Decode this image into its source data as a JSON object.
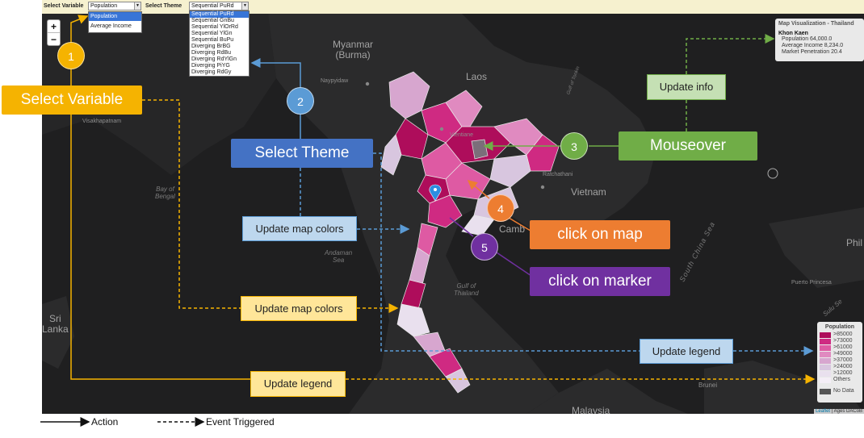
{
  "controls": {
    "variable_label": "Select Variable",
    "variable_value": "Population",
    "variable_options": [
      "Population",
      "Average Income"
    ],
    "theme_label": "Select Theme",
    "theme_value": "Sequential PuRd",
    "theme_options": [
      "Sequential PuRd",
      "Sequential GnBu",
      "Sequential YlOrRd",
      "Sequential YlGn",
      "Sequential BuPu",
      "Diverging BrBG",
      "Diverging RdBu",
      "Diverging RdYlGn",
      "Diverging PiYG",
      "Diverging RdGy"
    ]
  },
  "map": {
    "zoom_in": "+",
    "zoom_out": "−",
    "labels": {
      "myanmar": "Myanmar\n(Burma)",
      "laos": "Laos",
      "vietnam": "Vietnam",
      "bay_of_bengal": "Bay of\nBengal",
      "andaman_sea": "Andaman\nSea",
      "gulf_of_thailand": "Gulf of\nThailand",
      "south_china_sea": "South China Sea",
      "malaysia": "Malaysia",
      "sri_lanka": "Sri\nLanka",
      "cambodia": "Camb",
      "philippines": "Phil",
      "sulu_sea": "Sulu Se",
      "brunei": "Brunei",
      "vientiane": "Vientiane",
      "naypyidaw": "Naypyidaw",
      "ratchathani": "Ratchathani",
      "gulf_of_tonkin": "Gulf of Tonkin",
      "visakhapatnam": "Visakhapatnam",
      "puerto_princesa": "Puerto Princesa"
    }
  },
  "info": {
    "title": "Map Visualization - Thailand",
    "province": "Khon Kaen",
    "population": "Population 64,000.0",
    "income": "Average Income 8,234.0",
    "penetration": "Market Penetration 20.4"
  },
  "legend": {
    "title": "Population",
    "items": [
      {
        "label": ">85000",
        "color": "#ae0d5b"
      },
      {
        "label": ">73000",
        "color": "#cf2a82"
      },
      {
        "label": ">61000",
        "color": "#de5aa3"
      },
      {
        "label": ">49000",
        "color": "#e08ac0"
      },
      {
        "label": ">37000",
        "color": "#d7a6cf"
      },
      {
        "label": ">24000",
        "color": "#d8c6df"
      },
      {
        "label": ">12000",
        "color": "#e9e0ee"
      },
      {
        "label": "Others",
        "color": "#f4eef6"
      }
    ],
    "nodata": "No Data",
    "nodata_color": "#555555"
  },
  "attribution": {
    "leaflet": "Leaflet",
    "tiles": "| Ages DACoB"
  },
  "annotations": {
    "steps": {
      "s1": {
        "num": "1",
        "color": "#f5b301"
      },
      "s2": {
        "num": "2",
        "color": "#5b9bd5"
      },
      "s3": {
        "num": "3",
        "color": "#70ad47"
      },
      "s4": {
        "num": "4",
        "color": "#ed7d31"
      },
      "s5": {
        "num": "5",
        "color": "#7030a0"
      }
    },
    "select_variable": "Select Variable",
    "select_theme": "Select Theme",
    "mouseover": "Mouseover",
    "click_on_map": "click on map",
    "click_on_marker": "click on marker",
    "update_info": "Update info",
    "update_map_colors_1": "Update map colors",
    "update_map_colors_2": "Update map colors",
    "update_legend_1": "Update legend",
    "update_legend_2": "Update legend"
  },
  "footer": {
    "action": "Action",
    "event": "Event Triggered"
  }
}
